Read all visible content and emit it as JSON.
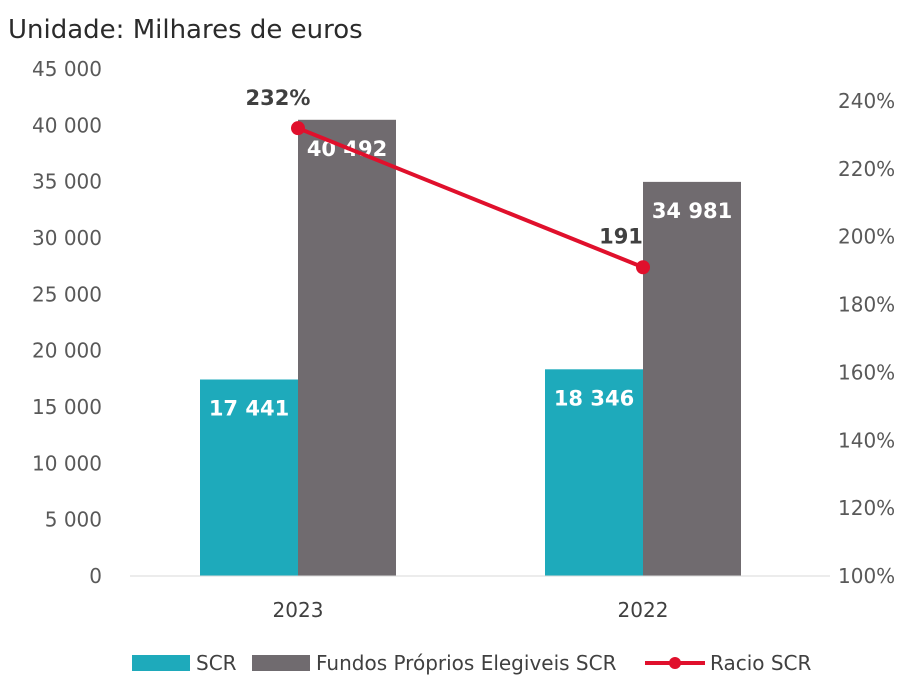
{
  "unit_label": "Unidade: Milhares de euros",
  "colors": {
    "scr": "#1eaabb",
    "fundos": "#706b6f",
    "racio": "#e0102c"
  },
  "chart_data": {
    "type": "bar",
    "categories": [
      "2023",
      "2022"
    ],
    "series": [
      {
        "name": "SCR",
        "kind": "bar",
        "axis": "left",
        "values": [
          17441,
          18346
        ],
        "labels": [
          "17 441",
          "18 346"
        ]
      },
      {
        "name": "Fundos Próprios Elegiveis SCR",
        "kind": "bar",
        "axis": "left",
        "values": [
          40492,
          34981
        ],
        "labels": [
          "40 492",
          "34 981"
        ]
      },
      {
        "name": "Racio SCR",
        "kind": "line",
        "axis": "right",
        "values": [
          232,
          191
        ],
        "labels": [
          "232%",
          "191"
        ]
      }
    ],
    "y_left": {
      "min": 0,
      "max": 45000,
      "ticks": [
        "0",
        "5 000",
        "10 000",
        "15 000",
        "20 000",
        "25 000",
        "30 000",
        "35 000",
        "40 000",
        "45 000"
      ],
      "tick_values": [
        0,
        5000,
        10000,
        15000,
        20000,
        25000,
        30000,
        35000,
        40000,
        45000
      ]
    },
    "y_right": {
      "min": 100,
      "max": 240,
      "ticks": [
        "100%",
        "120%",
        "140%",
        "160%",
        "180%",
        "200%",
        "220%",
        "240%"
      ],
      "tick_values": [
        100,
        120,
        140,
        160,
        180,
        200,
        220,
        240
      ]
    },
    "legend_position": "bottom",
    "grid": false
  }
}
